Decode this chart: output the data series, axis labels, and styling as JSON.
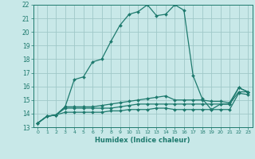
{
  "xlabel": "Humidex (Indice chaleur)",
  "x_values": [
    0,
    1,
    2,
    3,
    4,
    5,
    6,
    7,
    8,
    9,
    10,
    11,
    12,
    13,
    14,
    15,
    16,
    17,
    18,
    19,
    20,
    21,
    22,
    23
  ],
  "line1_y": [
    13.3,
    13.8,
    13.9,
    14.5,
    16.5,
    16.7,
    17.8,
    18.0,
    19.3,
    20.5,
    21.3,
    21.5,
    22.0,
    21.2,
    21.3,
    22.0,
    21.6,
    16.8,
    15.1,
    14.3,
    14.7,
    14.7,
    15.9,
    15.6
  ],
  "line2_y": [
    13.3,
    13.8,
    13.9,
    14.5,
    14.5,
    14.5,
    14.5,
    14.6,
    14.7,
    14.8,
    14.9,
    15.0,
    15.1,
    15.2,
    15.3,
    15.0,
    15.0,
    15.0,
    15.0,
    14.9,
    14.9,
    14.8,
    15.9,
    15.6
  ],
  "line3_y": [
    13.3,
    13.8,
    13.9,
    14.4,
    14.4,
    14.4,
    14.4,
    14.4,
    14.4,
    14.5,
    14.6,
    14.7,
    14.7,
    14.7,
    14.7,
    14.7,
    14.7,
    14.7,
    14.7,
    14.7,
    14.7,
    14.7,
    15.6,
    15.6
  ],
  "line4_y": [
    13.3,
    13.8,
    13.9,
    14.1,
    14.1,
    14.1,
    14.1,
    14.1,
    14.2,
    14.2,
    14.3,
    14.3,
    14.3,
    14.4,
    14.4,
    14.3,
    14.3,
    14.3,
    14.3,
    14.3,
    14.3,
    14.3,
    15.5,
    15.4
  ],
  "line_color": "#1e7a6e",
  "bg_color": "#c8e8e8",
  "grid_color": "#a0c8c8",
  "xlim": [
    -0.5,
    23.5
  ],
  "ylim": [
    13,
    22
  ],
  "yticks": [
    13,
    14,
    15,
    16,
    17,
    18,
    19,
    20,
    21,
    22
  ],
  "xticks": [
    0,
    1,
    2,
    3,
    4,
    5,
    6,
    7,
    8,
    9,
    10,
    11,
    12,
    13,
    14,
    15,
    16,
    17,
    18,
    19,
    20,
    21,
    22,
    23
  ],
  "marker": "D",
  "marker_size": 2.0,
  "linewidth": 0.9,
  "tick_labelsize": 5.5,
  "xlabel_fontsize": 6.0
}
